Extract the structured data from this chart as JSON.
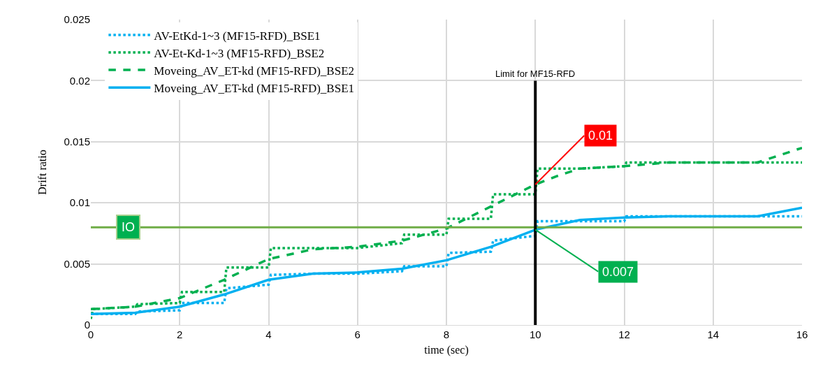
{
  "chart_data": {
    "type": "line",
    "xlabel": "time (sec)",
    "ylabel": "Drift ratio",
    "xlim": [
      0,
      16
    ],
    "xticks": [
      0,
      2,
      4,
      6,
      8,
      10,
      12,
      14,
      16
    ],
    "ylim": [
      0,
      0.025
    ],
    "yticks": [
      0,
      0.005,
      0.01,
      0.015,
      0.02,
      0.025
    ],
    "grid": true,
    "legend": "top left",
    "marker": "none",
    "series": [
      {
        "name": "AV-EtKd-1~3 (MF15-RFD)_BSE1",
        "color": "#00b0f0",
        "line_style": "dotted",
        "x": [
          0,
          1,
          1.05,
          2,
          2.05,
          3,
          3.05,
          4,
          4.05,
          5,
          6,
          7,
          7.05,
          8,
          8.05,
          9,
          9.05,
          10,
          10.05,
          11,
          12,
          12.05,
          16
        ],
        "values": [
          0.0009,
          0.0009,
          0.0011,
          0.0012,
          0.0018,
          0.0018,
          0.003,
          0.0033,
          0.0041,
          0.0042,
          0.0042,
          0.0044,
          0.0048,
          0.0048,
          0.0059,
          0.006,
          0.0069,
          0.0073,
          0.0085,
          0.0085,
          0.0085,
          0.0089,
          0.0089
        ]
      },
      {
        "name": "AV-Et-Kd-1~3 (MF15-RFD)_BSE2",
        "color": "#00b050",
        "line_style": "dotted",
        "x": [
          0,
          0.05,
          1,
          1.05,
          2,
          2.05,
          3,
          3.05,
          4,
          4.05,
          5,
          6,
          7,
          7.05,
          8,
          8.05,
          9,
          9.05,
          10,
          10.05,
          11,
          12,
          12.05,
          16
        ],
        "values": [
          0.0005,
          0.0013,
          0.0015,
          0.0017,
          0.0018,
          0.0027,
          0.0027,
          0.0047,
          0.0047,
          0.0063,
          0.0063,
          0.0063,
          0.0067,
          0.0074,
          0.0074,
          0.0087,
          0.0087,
          0.0107,
          0.0107,
          0.0128,
          0.0128,
          0.013,
          0.0133,
          0.0133
        ]
      },
      {
        "name": "Moveing_AV_ET-kd (MF15-RFD)_BSE2",
        "color": "#00b050",
        "line_style": "dashed",
        "x": [
          0,
          1,
          2,
          3,
          4,
          5,
          6,
          7,
          8,
          9,
          10,
          10.5,
          11,
          12,
          13,
          15,
          16
        ],
        "values": [
          0.0013,
          0.0015,
          0.0022,
          0.0037,
          0.0054,
          0.0062,
          0.0064,
          0.0069,
          0.0079,
          0.0097,
          0.0115,
          0.0122,
          0.0128,
          0.013,
          0.0133,
          0.0133,
          0.0145
        ]
      },
      {
        "name": "Moveing_AV_ET-kd (MF15-RFD)_BSE1",
        "color": "#00b0f0",
        "line_style": "solid",
        "x": [
          0,
          1,
          2,
          3,
          4,
          5,
          6,
          7,
          8,
          9,
          10,
          11,
          12,
          13,
          15,
          16
        ],
        "values": [
          0.0009,
          0.001,
          0.0015,
          0.0025,
          0.0037,
          0.0042,
          0.0043,
          0.0046,
          0.0053,
          0.0064,
          0.0078,
          0.0086,
          0.0088,
          0.0089,
          0.0089,
          0.0096
        ]
      }
    ],
    "ref_lines": [
      {
        "axis": "y",
        "value": 0.008,
        "label": "IO",
        "color": "#70ad47"
      },
      {
        "axis": "x",
        "value": 10,
        "label": "Limit for MF15-RFD",
        "color": "#000000"
      }
    ],
    "annotations": [
      {
        "text": "0.01",
        "x": 10,
        "y": 0.0115
      },
      {
        "text": "0.007",
        "x": 10,
        "y": 0.0078
      }
    ]
  }
}
